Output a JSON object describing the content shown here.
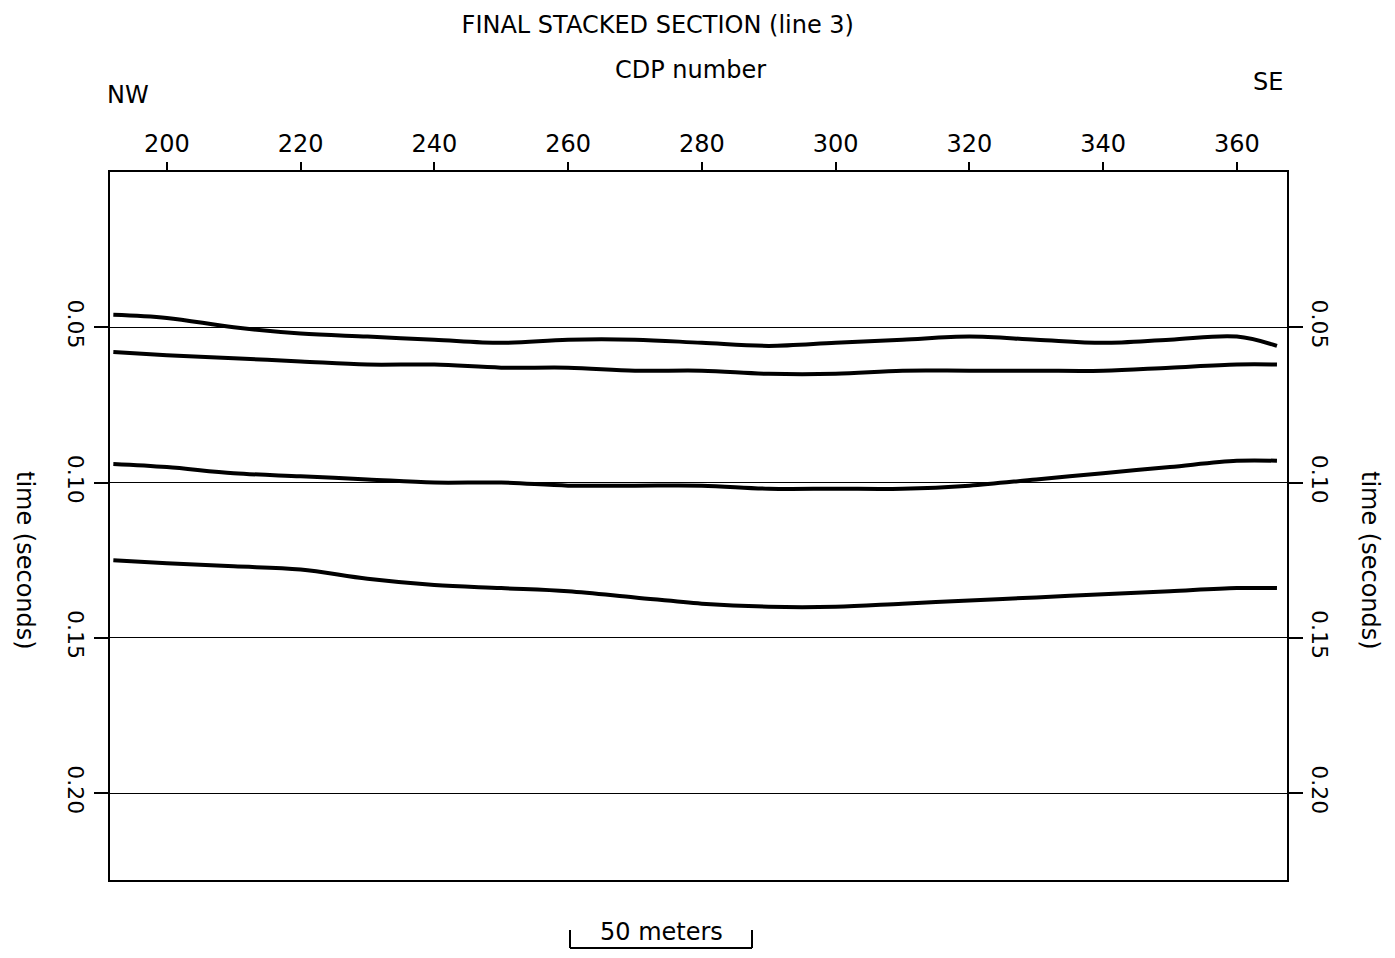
{
  "chart_data": {
    "type": "line",
    "title": "FINAL STACKED SECTION (line 3)",
    "x_label": "CDP number",
    "y_label": "time (seconds)",
    "left_label": "NW",
    "right_label": "SE",
    "scale_bar": "50 meters",
    "x": [
      192,
      200,
      210,
      220,
      230,
      240,
      250,
      260,
      270,
      280,
      290,
      300,
      310,
      320,
      330,
      340,
      350,
      360,
      366
    ],
    "series": [
      {
        "color": "#000000",
        "values": [
          0.046,
          0.047,
          0.05,
          0.052,
          0.053,
          0.054,
          0.055,
          0.054,
          0.054,
          0.055,
          0.056,
          0.055,
          0.054,
          0.053,
          0.054,
          0.055,
          0.054,
          0.053,
          0.056
        ]
      },
      {
        "color": "#000000",
        "values": [
          0.058,
          0.059,
          0.06,
          0.061,
          0.062,
          0.062,
          0.063,
          0.063,
          0.064,
          0.064,
          0.065,
          0.065,
          0.064,
          0.064,
          0.064,
          0.064,
          0.063,
          0.062,
          0.062
        ]
      },
      {
        "color": "#000000",
        "values": [
          0.094,
          0.095,
          0.097,
          0.098,
          0.099,
          0.1,
          0.1,
          0.101,
          0.101,
          0.101,
          0.102,
          0.102,
          0.102,
          0.101,
          0.099,
          0.097,
          0.095,
          0.093,
          0.093
        ]
      },
      {
        "color": "#000000",
        "values": [
          0.125,
          0.126,
          0.127,
          0.128,
          0.131,
          0.133,
          0.134,
          0.135,
          0.137,
          0.139,
          0.14,
          0.14,
          0.139,
          0.138,
          0.137,
          0.136,
          0.135,
          0.134,
          0.134
        ]
      }
    ],
    "xlim": [
      191.5,
      367.5
    ],
    "xticks": [
      200,
      220,
      240,
      260,
      280,
      300,
      320,
      340,
      360
    ],
    "ylim": [
      0,
      0.228
    ],
    "yticks": [
      0.05,
      {
        "value": 0.1,
        "label": "0.10"
      },
      0.15,
      {
        "value": 0.2,
        "label": "0.20"
      }
    ],
    "grid": true,
    "line_style": "solid",
    "marker": "none"
  }
}
